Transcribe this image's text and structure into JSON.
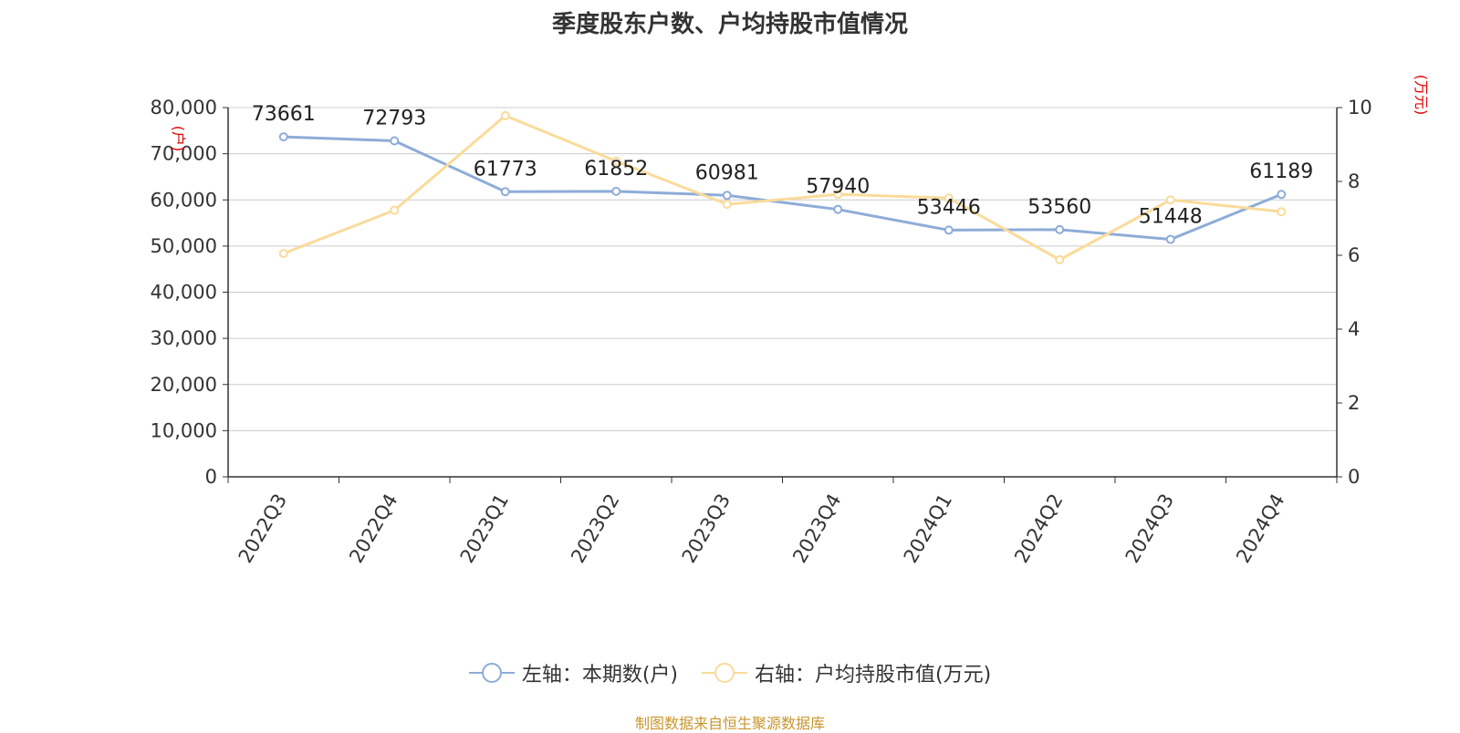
{
  "colors": {
    "left_series": "#8eacd8",
    "right_series": "#fadb9a",
    "axis_unit": "#e00000",
    "source": "#c8962e",
    "grid": "#cccccc",
    "axis": "#333333"
  },
  "source": "制图数据来自恒生聚源数据库",
  "chart_data": {
    "type": "line",
    "title": "季度股东户数、户均持股市值情况",
    "categories": [
      "2022Q3",
      "2022Q4",
      "2023Q1",
      "2023Q2",
      "2023Q3",
      "2023Q4",
      "2024Q1",
      "2024Q2",
      "2024Q3",
      "2024Q4"
    ],
    "left_axis": {
      "unit_label": "(户)",
      "ylim": [
        0,
        80000
      ],
      "ticks": [
        "0",
        "10,000",
        "20,000",
        "30,000",
        "40,000",
        "50,000",
        "60,000",
        "70,000",
        "80,000"
      ]
    },
    "right_axis": {
      "unit_label": "(万元)",
      "ylim": [
        0,
        10
      ],
      "ticks": [
        "0",
        "2",
        "4",
        "6",
        "8",
        "10"
      ]
    },
    "grid": true,
    "legend_position": "bottom",
    "series": [
      {
        "name": "左轴：本期数(户)",
        "axis": "left",
        "values": [
          73661,
          72793,
          61773,
          61852,
          60981,
          57940,
          53446,
          53560,
          51448,
          61189
        ],
        "data_labels": [
          "73661",
          "72793",
          "61773",
          "61852",
          "60981",
          "57940",
          "53446",
          "53560",
          "51448",
          "61189"
        ]
      },
      {
        "name": "右轴：户均持股市值(万元)",
        "axis": "right",
        "values": [
          6.05,
          7.22,
          9.78,
          8.55,
          7.38,
          7.65,
          7.55,
          5.88,
          7.5,
          7.18
        ]
      }
    ]
  }
}
